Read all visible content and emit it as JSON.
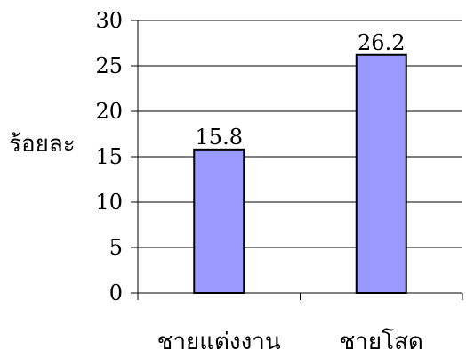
{
  "chart_data": {
    "type": "bar",
    "categories": [
      "ชายแต่งงาน",
      "ชายโสด"
    ],
    "values": [
      15.8,
      26.2
    ],
    "value_labels": [
      "15.8",
      "26.2"
    ],
    "title": "",
    "xlabel": "",
    "ylabel": "ร้อยละ",
    "ylim": [
      0,
      30
    ],
    "yticks": [
      0,
      5,
      10,
      15,
      20,
      25,
      30
    ],
    "grid": true,
    "legend": "none",
    "bar_color": "#9999ff",
    "bar_edge_color": "#000000",
    "grid_color": "#000000"
  }
}
